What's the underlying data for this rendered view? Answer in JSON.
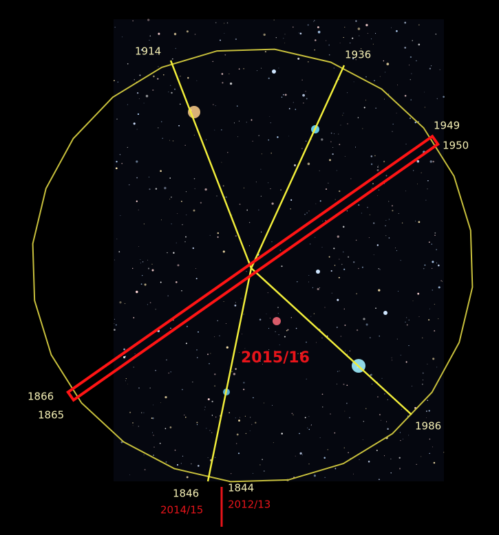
{
  "labels": {
    "top_left": "1914",
    "top_right": "1936",
    "right_upper": "1949",
    "right_lower": "1950",
    "left_upper": "1866",
    "left_lower": "1865",
    "bottom_right": "1986",
    "bottom_left": "1846",
    "bottom_left_red": "2014/15",
    "bottom_center": "1844",
    "bottom_center_red": "2012/13",
    "center_red": "2015/16"
  }
}
